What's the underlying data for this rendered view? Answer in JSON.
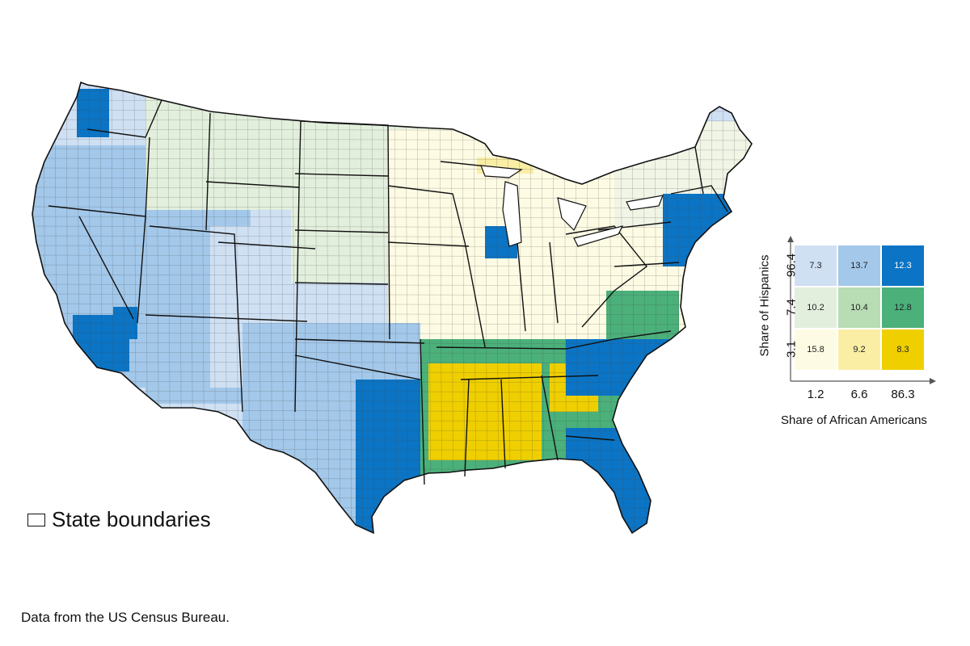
{
  "legend": {
    "state_boundaries_label": "State boundaries"
  },
  "source_note": "Data from the US Census Bureau.",
  "bivariate_legend": {
    "y_label": "Share of Hispanics",
    "x_label": "Share of African Americans",
    "y_ticks": [
      "3.1",
      "7.4",
      "96.4"
    ],
    "x_ticks": [
      "1.2",
      "6.6",
      "86.3"
    ],
    "cells": [
      {
        "row": "top",
        "col": "left",
        "value": "7.3",
        "color": "#cfe0f3"
      },
      {
        "row": "top",
        "col": "middle",
        "value": "13.7",
        "color": "#a3c8ea"
      },
      {
        "row": "top",
        "col": "right",
        "value": "12.3",
        "color": "#0b74c4"
      },
      {
        "row": "middle",
        "col": "left",
        "value": "10.2",
        "color": "#e2efdc"
      },
      {
        "row": "middle",
        "col": "middle",
        "value": "10.4",
        "color": "#b8dcb4"
      },
      {
        "row": "middle",
        "col": "right",
        "value": "12.8",
        "color": "#4bb07a"
      },
      {
        "row": "bottom",
        "col": "left",
        "value": "15.8",
        "color": "#fdfbe3"
      },
      {
        "row": "bottom",
        "col": "middle",
        "value": "9.2",
        "color": "#faeea5"
      },
      {
        "row": "bottom",
        "col": "right",
        "value": "8.3",
        "color": "#efcf00"
      }
    ]
  },
  "colors": {
    "state_border": "#111111",
    "county_border": "#4a4a4a",
    "water": "#ffffff"
  }
}
